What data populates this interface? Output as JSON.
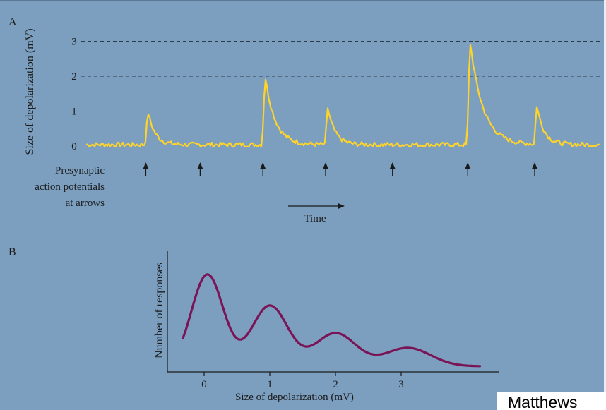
{
  "credit": "Matthews",
  "chart_data": [
    {
      "panel_label": "A",
      "type": "line",
      "ylabel": "Size of depolarization (mV)",
      "xlabel": "Time",
      "yticks": [
        "0",
        "1",
        "2",
        "3"
      ],
      "ylim": [
        0,
        3
      ],
      "gridlines": "dashed at 1, 2, 3",
      "arrow_label": [
        "Presynaptic",
        "action potentials",
        "at arrows"
      ],
      "trace_color": "#ffd42a",
      "events": [
        {
          "t": 0.07,
          "amplitude": 0.95
        },
        {
          "t": 0.2,
          "amplitude": 0
        },
        {
          "t": 0.35,
          "amplitude": 2.0
        },
        {
          "t": 0.5,
          "amplitude": 1.05
        },
        {
          "t": 0.66,
          "amplitude": 0
        },
        {
          "t": 0.84,
          "amplitude": 3.0
        },
        {
          "t": 1.0,
          "amplitude": 1.1
        }
      ]
    },
    {
      "panel_label": "B",
      "type": "line",
      "ylabel": "Number of responses",
      "xlabel": "Size of depolarization (mV)",
      "xticks": [
        "0",
        "1",
        "2",
        "3"
      ],
      "xlim": [
        -0.4,
        4.3
      ],
      "trace_color": "#7a1456",
      "peaks": [
        {
          "x": 0.05,
          "height": 1.0
        },
        {
          "x": 1.0,
          "height": 0.66
        },
        {
          "x": 2.0,
          "height": 0.36
        },
        {
          "x": 3.1,
          "height": 0.2
        }
      ]
    }
  ]
}
